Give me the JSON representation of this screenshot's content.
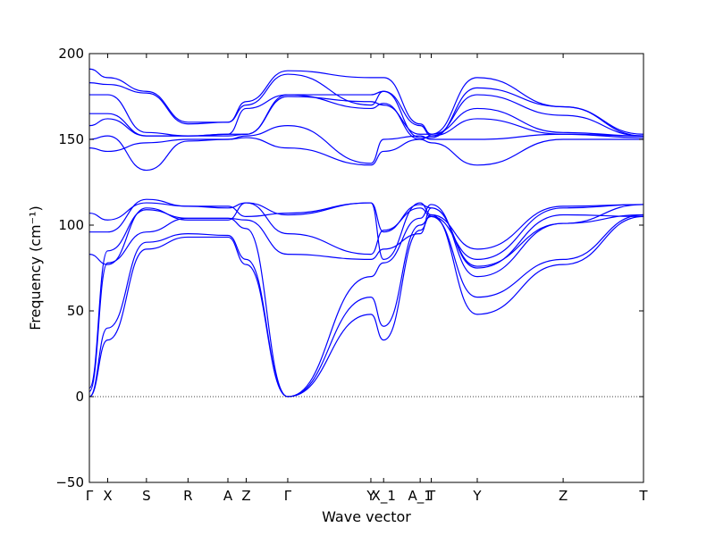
{
  "chart_data": {
    "type": "line",
    "xlabel": "Wave vector",
    "ylabel": "Frequency (cm⁻¹)",
    "ylim": [
      -50,
      200
    ],
    "yticks": [
      -50,
      0,
      50,
      100,
      150,
      200
    ],
    "zero_line": true,
    "grid": false,
    "line_color": "#0000ff",
    "x_range": [
      0,
      10
    ],
    "high_symmetry_points": [
      {
        "label": "Γ",
        "x": 0.0
      },
      {
        "label": "X",
        "x": 0.33
      },
      {
        "label": "S",
        "x": 1.03
      },
      {
        "label": "R",
        "x": 1.78
      },
      {
        "label": "A",
        "x": 2.5
      },
      {
        "label": "Z",
        "x": 2.83
      },
      {
        "label": "Γ",
        "x": 3.58
      },
      {
        "label": "Y",
        "x": 5.08
      },
      {
        "label": "X_1",
        "x": 5.31
      },
      {
        "label": "A_1",
        "x": 5.97
      },
      {
        "label": "T",
        "x": 6.17
      },
      {
        "label": "Y",
        "x": 7.0
      },
      {
        "label": "Z",
        "x": 8.55
      },
      {
        "label": "T",
        "x": 10.0
      }
    ],
    "branch_x": [
      0,
      0.33,
      1.03,
      1.78,
      2.5,
      2.83,
      3.58,
      5.08,
      5.31,
      5.97,
      6.17,
      7.0,
      8.55,
      10.0
    ],
    "series": [
      {
        "values": [
          0,
          33,
          86,
          93,
          93,
          77,
          0,
          48,
          33,
          97,
          106,
          48,
          77,
          105
        ]
      },
      {
        "values": [
          0,
          40,
          90,
          95,
          94,
          80,
          0,
          58,
          41,
          100,
          105,
          58,
          80,
          106
        ]
      },
      {
        "values": [
          3,
          78,
          96,
          104,
          104,
          98,
          0,
          70,
          78,
          104,
          112,
          70,
          101,
          106
        ]
      },
      {
        "values": [
          5,
          85,
          109,
          104,
          104,
          103,
          83,
          80,
          86,
          95,
          110,
          76,
          101,
          112
        ]
      },
      {
        "values": [
          83,
          77,
          110,
          103,
          103,
          113,
          95,
          83,
          97,
          110,
          105,
          80,
          110,
          112
        ]
      },
      {
        "values": [
          96,
          96,
          115,
          111,
          111,
          105,
          107,
          113,
          80,
          113,
          106,
          86,
          111,
          112
        ]
      },
      {
        "values": [
          107,
          103,
          113,
          111,
          110,
          113,
          106,
          113,
          96,
          112,
          110,
          75,
          106,
          105
        ]
      },
      {
        "values": [
          145,
          143,
          148,
          150,
          150,
          151,
          145,
          135,
          143,
          150,
          148,
          135,
          150,
          150
        ]
      },
      {
        "values": [
          150,
          152,
          132,
          149,
          150,
          152,
          158,
          136,
          150,
          152,
          150,
          150,
          153,
          152
        ]
      },
      {
        "values": [
          158,
          162,
          152,
          152,
          152,
          153,
          176,
          168,
          171,
          150,
          152,
          162,
          153,
          151
        ]
      },
      {
        "values": [
          165,
          165,
          152,
          152,
          153,
          153,
          175,
          172,
          170,
          153,
          153,
          168,
          154,
          152
        ]
      },
      {
        "values": [
          176,
          176,
          154,
          152,
          153,
          168,
          176,
          176,
          178,
          158,
          152,
          176,
          164,
          152
        ]
      },
      {
        "values": [
          183,
          182,
          177,
          159,
          160,
          170,
          188,
          170,
          178,
          151,
          151,
          180,
          169,
          153
        ]
      },
      {
        "values": [
          191,
          186,
          178,
          160,
          160,
          172,
          190,
          186,
          186,
          159,
          153,
          186,
          169,
          152
        ]
      }
    ]
  }
}
